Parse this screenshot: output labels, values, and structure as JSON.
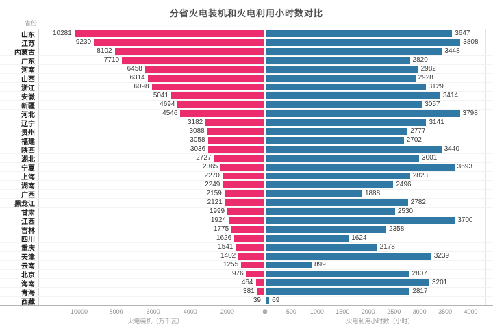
{
  "title": "分省火电装机和火电利用小时数对比",
  "header": {
    "province_col": "省份"
  },
  "chart_data": {
    "type": "bar",
    "subtype": "diverging-horizontal",
    "grid": "row-separators",
    "legend": "none",
    "categories": [
      "山东",
      "江苏",
      "内蒙古",
      "广东",
      "河南",
      "山西",
      "浙江",
      "安徽",
      "新疆",
      "河北",
      "辽宁",
      "贵州",
      "福建",
      "陕西",
      "湖北",
      "宁夏",
      "上海",
      "湖南",
      "广西",
      "黑龙江",
      "甘肃",
      "江西",
      "吉林",
      "四川",
      "重庆",
      "天津",
      "云南",
      "北京",
      "海南",
      "青海",
      "西藏"
    ],
    "series": [
      {
        "name": "火电装机",
        "unit": "万千瓦",
        "axis_label": "火电装机（万千瓦）",
        "direction": "left",
        "color": "#EC2D6D",
        "axis_ticks": [
          10000,
          8000,
          6000,
          4000,
          2000,
          0
        ],
        "scale_max": 12200,
        "values": [
          10281,
          9230,
          8102,
          7710,
          6458,
          6314,
          6098,
          5041,
          4694,
          4546,
          3182,
          3088,
          3058,
          3036,
          2727,
          2365,
          2270,
          2249,
          2159,
          2121,
          1999,
          1924,
          1775,
          1626,
          1541,
          1402,
          1255,
          976,
          464,
          381,
          39
        ]
      },
      {
        "name": "火电利用小时数",
        "unit": "小时",
        "axis_label": "火电利用小时数（小时）",
        "direction": "right",
        "color": "#3079A5",
        "axis_ticks": [
          0,
          500,
          1000,
          1500,
          2000,
          2500,
          3000,
          3500,
          4000
        ],
        "scale_max": 4300,
        "values": [
          3647,
          3808,
          3448,
          2820,
          2982,
          2928,
          3129,
          3414,
          3057,
          3798,
          3141,
          2777,
          2702,
          3440,
          3001,
          3693,
          2823,
          2496,
          1888,
          2782,
          2530,
          3700,
          2358,
          1624,
          2178,
          3239,
          899,
          2807,
          3201,
          2817,
          69
        ]
      }
    ]
  }
}
